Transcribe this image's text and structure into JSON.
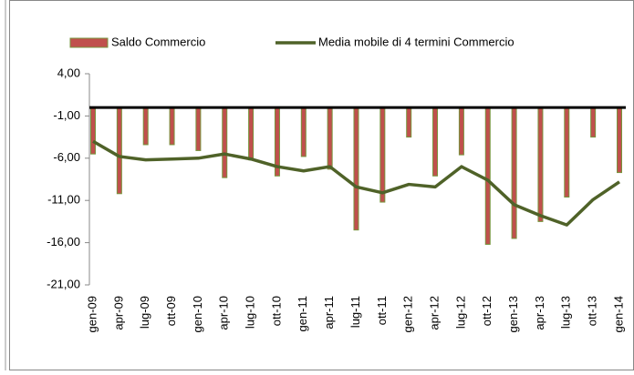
{
  "chart_data": {
    "type": "bar",
    "categories": [
      "gen-09",
      "apr-09",
      "lug-09",
      "ott-09",
      "gen-10",
      "apr-10",
      "lug-10",
      "ott-10",
      "gen-11",
      "apr-11",
      "lug-11",
      "ott-11",
      "gen-12",
      "apr-12",
      "lug-12",
      "ott-12",
      "gen-13",
      "apr-13",
      "lug-13",
      "ott-13",
      "gen-14"
    ],
    "series": [
      {
        "name": "Saldo Commercio",
        "type": "bar",
        "color": "#c0504d",
        "edge": "#77933c",
        "values": [
          -5.5,
          -10.2,
          -4.4,
          -4.4,
          -5.1,
          -8.3,
          -6.2,
          -8.1,
          -5.8,
          -7.3,
          -14.5,
          -11.2,
          -3.5,
          -8.1,
          -5.6,
          -16.2,
          -15.5,
          -13.5,
          -10.6,
          -3.5,
          -7.7
        ]
      },
      {
        "name": "Media mobile di 4 termini Commercio",
        "type": "line",
        "color": "#4f6228",
        "values": [
          -4.0,
          -5.8,
          -6.2,
          -6.1,
          -6.0,
          -5.5,
          -6.1,
          -7.0,
          -7.5,
          -7.0,
          -9.4,
          -10.1,
          -9.1,
          -9.4,
          -7.0,
          -8.6,
          -11.5,
          -12.8,
          -13.9,
          -10.9,
          -8.8
        ]
      }
    ],
    "ylim": [
      -21,
      4
    ],
    "yticks": [
      {
        "value": 4,
        "label": "4,00"
      },
      {
        "value": -1,
        "label": "-1,00"
      },
      {
        "value": -6,
        "label": "-6,00"
      },
      {
        "value": -11,
        "label": "-11,00"
      },
      {
        "value": -16,
        "label": "-16,00"
      },
      {
        "value": -21,
        "label": "-21,00"
      }
    ],
    "grid": false,
    "legend": "top"
  }
}
